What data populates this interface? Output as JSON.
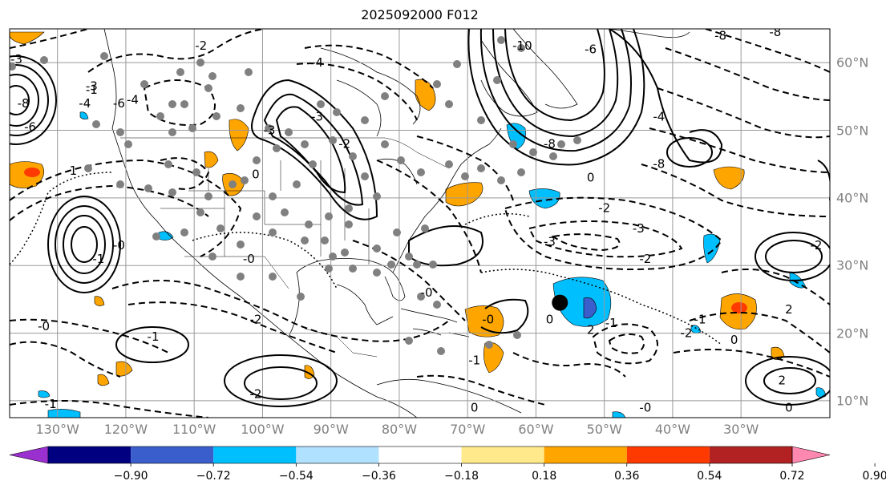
{
  "title": "2025092000 F012",
  "map": {
    "lon_range": [
      -137,
      -17
    ],
    "lat_range": [
      7.5,
      65
    ],
    "lon_ticks": [
      {
        "lon": -130,
        "label": "130°W"
      },
      {
        "lon": -120,
        "label": "120°W"
      },
      {
        "lon": -110,
        "label": "110°W"
      },
      {
        "lon": -100,
        "label": "100°W"
      },
      {
        "lon": -90,
        "label": "90°W"
      },
      {
        "lon": -80,
        "label": "80°W"
      },
      {
        "lon": -70,
        "label": "70°W"
      },
      {
        "lon": -60,
        "label": "60°W"
      },
      {
        "lon": -50,
        "label": "50°W"
      },
      {
        "lon": -40,
        "label": "40°W"
      },
      {
        "lon": -30,
        "label": "30°W"
      }
    ],
    "lat_ticks": [
      {
        "lat": 60,
        "label": "60°N"
      },
      {
        "lat": 50,
        "label": "50°N"
      },
      {
        "lat": 40,
        "label": "40°N"
      },
      {
        "lat": 30,
        "label": "30°N"
      },
      {
        "lat": 20,
        "label": "20°N"
      },
      {
        "lat": 10,
        "label": "10°N"
      }
    ],
    "grid": true,
    "storm_marker": {
      "lon": -56.5,
      "lat": 24.5,
      "color": "#000000"
    }
  },
  "contour_labels": [
    {
      "text": "-2",
      "lon": -109,
      "lat": 62.5
    },
    {
      "text": "-4",
      "lon": -92,
      "lat": 60
    },
    {
      "text": "-3",
      "lon": -125,
      "lat": 56.5
    },
    {
      "text": "-4",
      "lon": -126,
      "lat": 54
    },
    {
      "text": "-6",
      "lon": -121,
      "lat": 54
    },
    {
      "text": "-4",
      "lon": -119,
      "lat": 54.5
    },
    {
      "text": "-8",
      "lon": -135,
      "lat": 54
    },
    {
      "text": "-6",
      "lon": -134,
      "lat": 50.5
    },
    {
      "text": "-3",
      "lon": -136,
      "lat": 60.5
    },
    {
      "text": "-1",
      "lon": -128,
      "lat": 44
    },
    {
      "text": "-1",
      "lon": -125,
      "lat": 56
    },
    {
      "text": "0",
      "lon": -101,
      "lat": 43.5
    },
    {
      "text": "-3",
      "lon": -99,
      "lat": 50
    },
    {
      "text": "-3",
      "lon": -92,
      "lat": 52
    },
    {
      "text": "-2",
      "lon": -88,
      "lat": 48
    },
    {
      "text": "-1",
      "lon": -124,
      "lat": 31
    },
    {
      "text": "-0",
      "lon": -121,
      "lat": 33
    },
    {
      "text": "-0",
      "lon": -102,
      "lat": 31
    },
    {
      "text": "-2",
      "lon": -101,
      "lat": 22
    },
    {
      "text": "-0",
      "lon": -132,
      "lat": 21
    },
    {
      "text": "-1",
      "lon": -116,
      "lat": 19.5
    },
    {
      "text": "-1",
      "lon": -131,
      "lat": 9.5
    },
    {
      "text": "-2",
      "lon": -101,
      "lat": 11
    },
    {
      "text": "-1",
      "lon": -69,
      "lat": 16
    },
    {
      "text": "-0",
      "lon": -67,
      "lat": 22
    },
    {
      "text": "-0",
      "lon": -76,
      "lat": 26
    },
    {
      "text": "0",
      "lon": -58,
      "lat": 22
    },
    {
      "text": "-2",
      "lon": -50,
      "lat": 38.5
    },
    {
      "text": "-3",
      "lon": -45,
      "lat": 35.5
    },
    {
      "text": "-3",
      "lon": -58,
      "lat": 33.5
    },
    {
      "text": "-2",
      "lon": -44,
      "lat": 31
    },
    {
      "text": "2",
      "lon": -52,
      "lat": 20.5
    },
    {
      "text": "-1",
      "lon": -49,
      "lat": 21.5
    },
    {
      "text": "-2",
      "lon": -38,
      "lat": 20
    },
    {
      "text": "-1",
      "lon": -36,
      "lat": 22
    },
    {
      "text": "-2",
      "lon": -19,
      "lat": 33
    },
    {
      "text": "2",
      "lon": -23,
      "lat": 23.5
    },
    {
      "text": "2",
      "lon": -24,
      "lat": 13
    },
    {
      "text": "0",
      "lon": -31,
      "lat": 19
    },
    {
      "text": "-0",
      "lon": -44,
      "lat": 9
    },
    {
      "text": "0",
      "lon": -23,
      "lat": 9
    },
    {
      "text": "0",
      "lon": -69,
      "lat": 9
    },
    {
      "text": "-10",
      "lon": -62,
      "lat": 62.5
    },
    {
      "text": "-8",
      "lon": -58,
      "lat": 48
    },
    {
      "text": "-8",
      "lon": -42,
      "lat": 45
    },
    {
      "text": "-8",
      "lon": -33,
      "lat": 64
    },
    {
      "text": "-8",
      "lon": -25,
      "lat": 64.5
    },
    {
      "text": "-6",
      "lon": -52,
      "lat": 62
    },
    {
      "text": "-4",
      "lon": -42,
      "lat": 52
    },
    {
      "text": "0",
      "lon": -52,
      "lat": 43
    }
  ],
  "colorbar": {
    "colors": [
      "#9b30d0",
      "#000080",
      "#3a5fcd",
      "#00bfff",
      "#b0e2ff",
      "#ffffff",
      "#ffe98a",
      "#ffa500",
      "#ff3a00",
      "#b22222",
      "#ff88b0"
    ],
    "ticks": [
      "−0.90",
      "−0.72",
      "−0.54",
      "−0.36",
      "−0.18",
      "0.18",
      "0.36",
      "0.54",
      "0.72",
      "0.90"
    ]
  }
}
